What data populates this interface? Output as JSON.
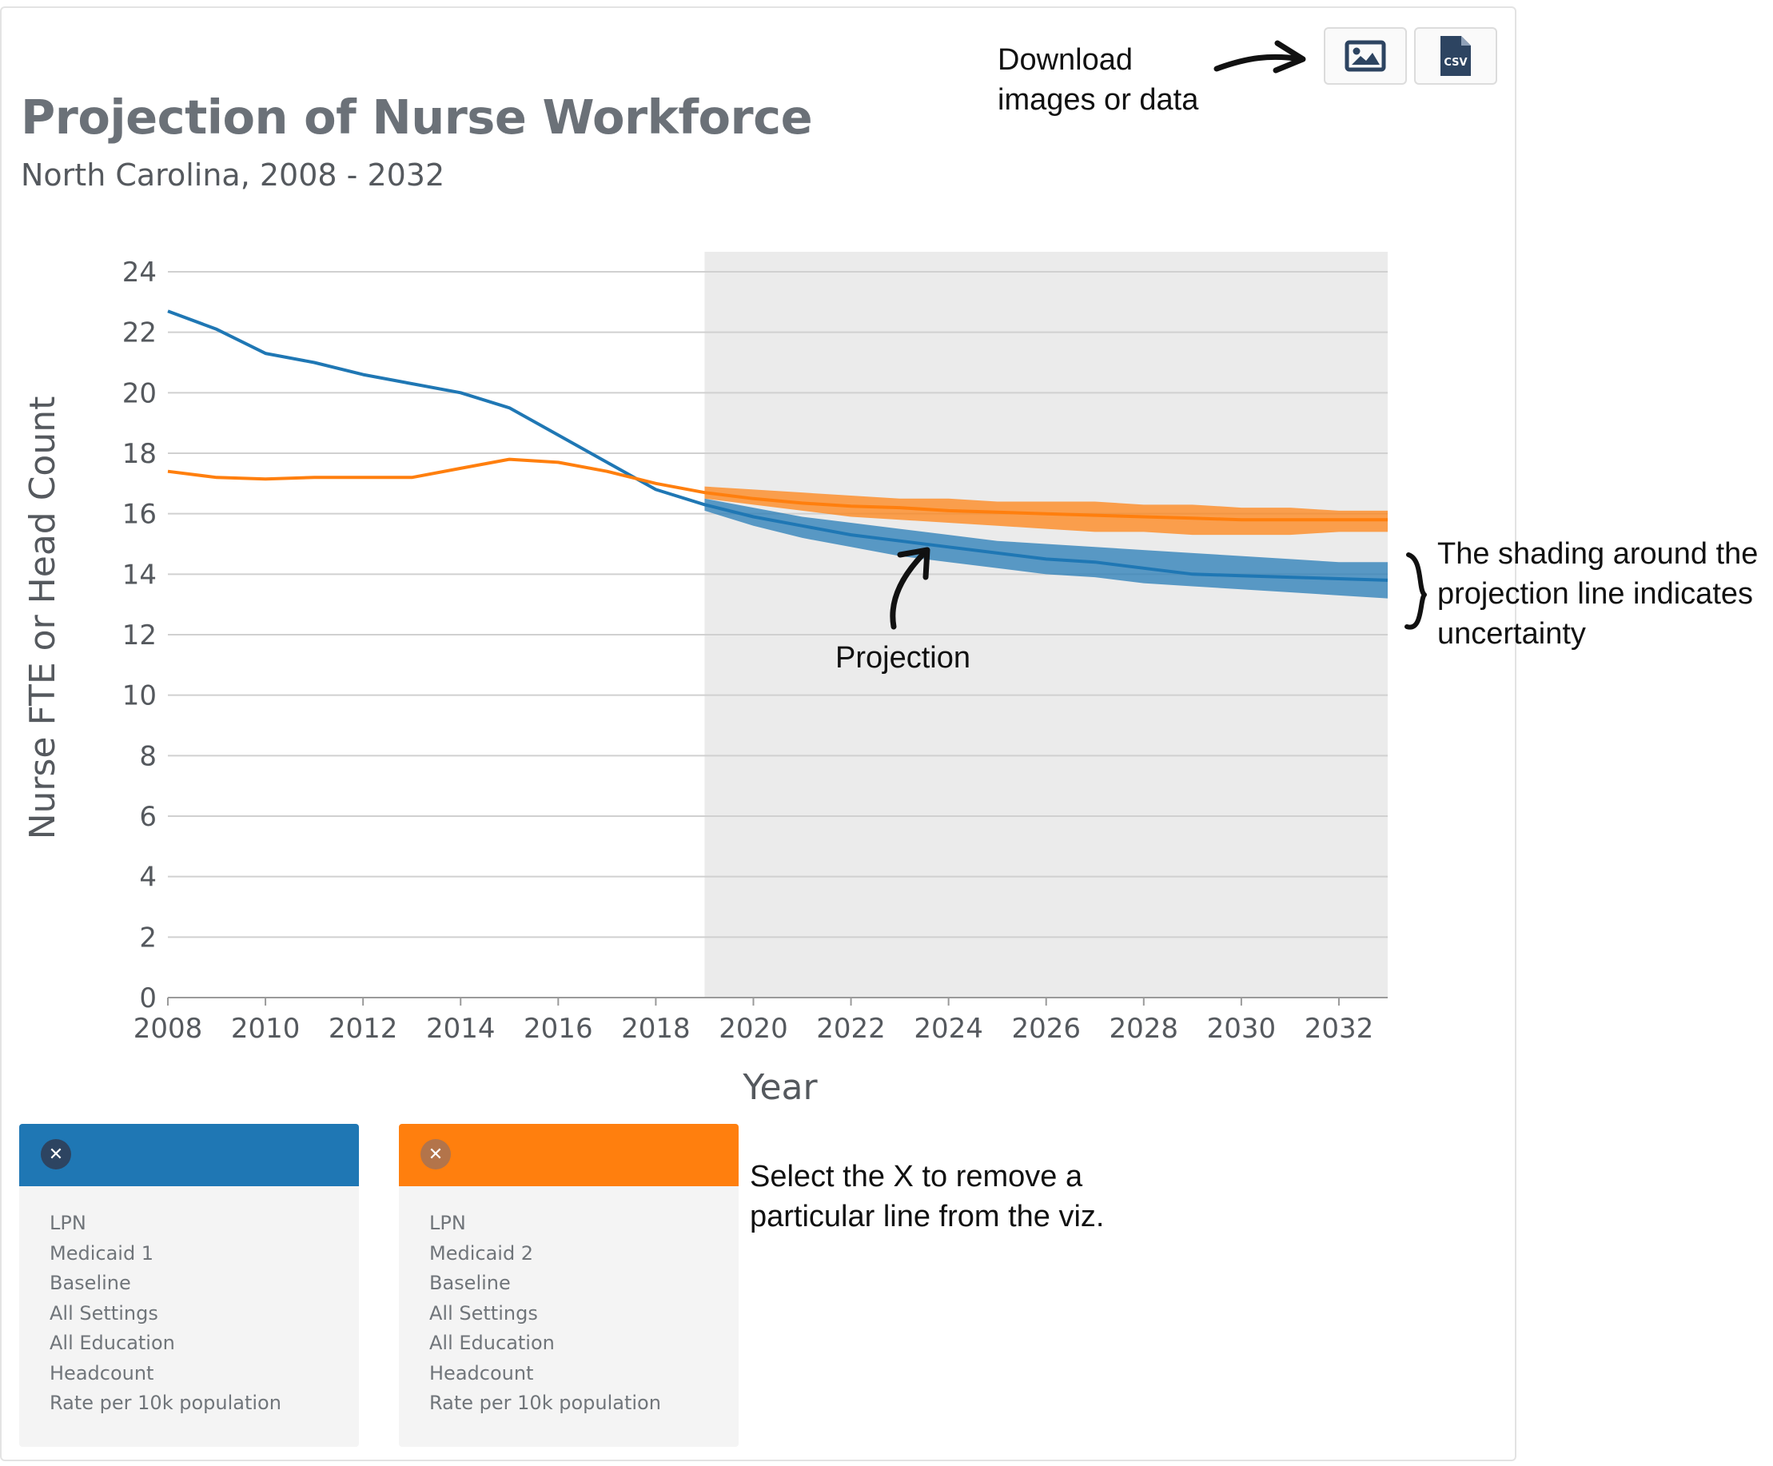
{
  "header": {
    "title": "Projection of Nurse Workforce",
    "subtitle": "North Carolina, 2008 - 2032"
  },
  "downloads": {
    "image_icon": "image-icon",
    "csv_icon": "csv-file-icon",
    "csv_text": "CSV"
  },
  "annotations": {
    "download_line1": "Download",
    "download_line2": "images or data",
    "projection": "Projection",
    "shading_line1": "The shading around the",
    "shading_line2": "projection line indicates",
    "shading_line3": "uncertainty",
    "select_line1": "Select the X to remove a",
    "select_line2": "particular line from the viz."
  },
  "colors": {
    "series1": "#1f77b4",
    "series2": "#ff7f0e",
    "projection_region": "#ebebeb",
    "grid": "#d0d0d0"
  },
  "cards": [
    {
      "close_icon": "close-icon",
      "lines": [
        "LPN",
        "Medicaid 1",
        "Baseline",
        "All Settings",
        "All Education",
        "Headcount",
        "Rate per 10k population"
      ]
    },
    {
      "close_icon": "close-icon",
      "lines": [
        "LPN",
        "Medicaid 2",
        "Baseline",
        "All Settings",
        "All Education",
        "Headcount",
        "Rate per 10k population"
      ]
    }
  ],
  "chart_data": {
    "type": "line",
    "title": "Projection of Nurse Workforce",
    "subtitle": "North Carolina, 2008 - 2032",
    "xlabel": "Year",
    "ylabel": "Nurse FTE or Head Count",
    "xlim": [
      2008,
      2033
    ],
    "ylim": [
      0,
      24
    ],
    "xticks": [
      "2008",
      "2010",
      "2012",
      "2014",
      "2016",
      "2018",
      "2020",
      "2022",
      "2024",
      "2026",
      "2028",
      "2030",
      "2032"
    ],
    "yticks": [
      "0",
      "2",
      "4",
      "6",
      "8",
      "10",
      "12",
      "14",
      "16",
      "18",
      "20",
      "22",
      "24"
    ],
    "grid": true,
    "projection_start": 2019,
    "series": [
      {
        "x": [
          2008,
          2009,
          2010,
          2011,
          2012,
          2013,
          2014,
          2015,
          2016,
          2017,
          2018,
          2019,
          2020,
          2021,
          2022,
          2023,
          2024,
          2025,
          2026,
          2027,
          2028,
          2029,
          2030,
          2031,
          2032,
          2033
        ],
        "y": [
          22.7,
          22.1,
          21.3,
          21.0,
          20.6,
          20.3,
          20.0,
          19.5,
          18.6,
          17.7,
          16.8,
          16.3,
          15.9,
          15.6,
          15.3,
          15.1,
          14.9,
          14.7,
          14.5,
          14.4,
          14.2,
          14.0,
          13.95,
          13.9,
          13.85,
          13.8
        ],
        "upper": [
          null,
          null,
          null,
          null,
          null,
          null,
          null,
          null,
          null,
          null,
          null,
          16.5,
          16.2,
          15.9,
          15.7,
          15.5,
          15.3,
          15.1,
          15.0,
          14.9,
          14.8,
          14.7,
          14.6,
          14.5,
          14.4,
          14.4
        ],
        "lower": [
          null,
          null,
          null,
          null,
          null,
          null,
          null,
          null,
          null,
          null,
          null,
          16.1,
          15.6,
          15.2,
          14.9,
          14.6,
          14.4,
          14.2,
          14.0,
          13.9,
          13.7,
          13.6,
          13.5,
          13.4,
          13.3,
          13.2
        ]
      },
      {
        "x": [
          2008,
          2009,
          2010,
          2011,
          2012,
          2013,
          2014,
          2015,
          2016,
          2017,
          2018,
          2019,
          2020,
          2021,
          2022,
          2023,
          2024,
          2025,
          2026,
          2027,
          2028,
          2029,
          2030,
          2031,
          2032,
          2033
        ],
        "y": [
          17.4,
          17.2,
          17.15,
          17.2,
          17.2,
          17.2,
          17.5,
          17.8,
          17.7,
          17.4,
          17.0,
          16.7,
          16.5,
          16.35,
          16.25,
          16.2,
          16.1,
          16.05,
          16.0,
          15.95,
          15.9,
          15.85,
          15.8,
          15.8,
          15.8,
          15.8
        ],
        "upper": [
          null,
          null,
          null,
          null,
          null,
          null,
          null,
          null,
          null,
          null,
          null,
          16.9,
          16.8,
          16.7,
          16.6,
          16.5,
          16.5,
          16.4,
          16.4,
          16.4,
          16.3,
          16.3,
          16.2,
          16.2,
          16.1,
          16.1
        ],
        "lower": [
          null,
          null,
          null,
          null,
          null,
          null,
          null,
          null,
          null,
          null,
          null,
          16.5,
          16.3,
          16.1,
          15.9,
          15.8,
          15.7,
          15.6,
          15.5,
          15.4,
          15.4,
          15.3,
          15.3,
          15.3,
          15.4,
          15.4
        ]
      }
    ]
  }
}
